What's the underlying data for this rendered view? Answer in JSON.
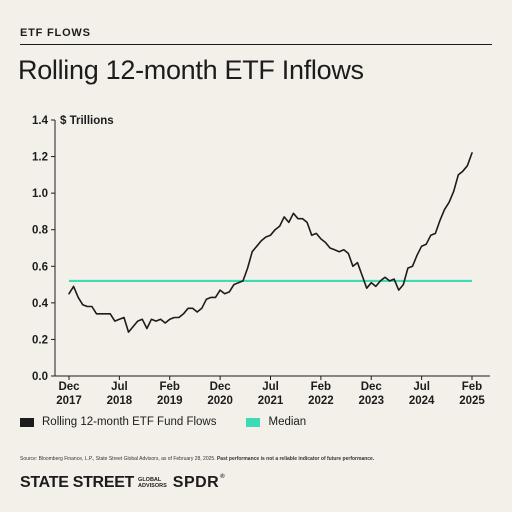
{
  "header": {
    "kicker": "ETF FLOWS",
    "title": "Rolling 12-month ETF Inflows"
  },
  "colors": {
    "background": "#f3f0e9",
    "line": "#1c1c1c",
    "median": "#3ddbb5"
  },
  "chart_data": {
    "type": "line",
    "ylabel": "$ Trillions",
    "ylim": [
      0,
      1.4
    ],
    "yticks": [
      "0.0",
      "0.2",
      "0.4",
      "0.6",
      "0.8",
      "1.0",
      "1.2",
      "1.4"
    ],
    "xticks": [
      {
        "month": "Dec",
        "year": "2017"
      },
      {
        "month": "Jul",
        "year": "2018"
      },
      {
        "month": "Feb",
        "year": "2019"
      },
      {
        "month": "Dec",
        "year": "2020"
      },
      {
        "month": "Jul",
        "year": "2021"
      },
      {
        "month": "Feb",
        "year": "2022"
      },
      {
        "month": "Dec",
        "year": "2023"
      },
      {
        "month": "Jul",
        "year": "2024"
      },
      {
        "month": "Feb",
        "year": "2025"
      }
    ],
    "series": [
      {
        "name": "Rolling 12-month ETF Fund Flows",
        "values": [
          0.45,
          0.49,
          0.43,
          0.39,
          0.38,
          0.38,
          0.34,
          0.34,
          0.34,
          0.34,
          0.3,
          0.31,
          0.32,
          0.24,
          0.27,
          0.3,
          0.31,
          0.26,
          0.31,
          0.3,
          0.31,
          0.29,
          0.31,
          0.32,
          0.32,
          0.34,
          0.37,
          0.37,
          0.35,
          0.37,
          0.42,
          0.43,
          0.43,
          0.47,
          0.45,
          0.46,
          0.5,
          0.51,
          0.52,
          0.59,
          0.68,
          0.71,
          0.74,
          0.76,
          0.77,
          0.8,
          0.82,
          0.87,
          0.84,
          0.89,
          0.86,
          0.86,
          0.84,
          0.77,
          0.78,
          0.75,
          0.73,
          0.7,
          0.69,
          0.68,
          0.69,
          0.67,
          0.6,
          0.62,
          0.55,
          0.48,
          0.51,
          0.49,
          0.52,
          0.54,
          0.52,
          0.53,
          0.47,
          0.5,
          0.59,
          0.6,
          0.66,
          0.71,
          0.72,
          0.77,
          0.78,
          0.85,
          0.91,
          0.95,
          1.01,
          1.1,
          1.12,
          1.15,
          1.22
        ]
      },
      {
        "name": "Median",
        "values": [
          0.52,
          0.52
        ]
      }
    ]
  },
  "footer": {
    "source_text": "Source: Bloomberg Finance, L.P., State Street Global Advisors, as of February 28, 2025.",
    "disclaimer": "Past performance is not a reliable indicator of future performance.",
    "brand_primary": "STATE STREET",
    "brand_sub_1": "GLOBAL",
    "brand_sub_2": "ADVISORS",
    "brand_product": "SPDR",
    "brand_mark": "®"
  }
}
